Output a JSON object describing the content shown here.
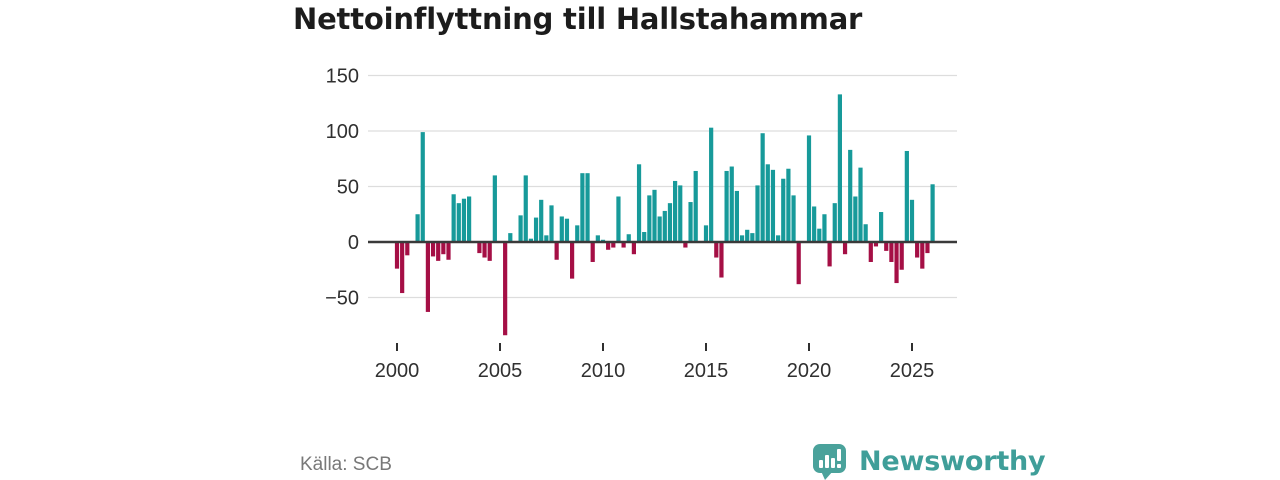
{
  "title": "Nettoinflyttning till Hallstahammar",
  "footer": {
    "source": "Källa: SCB",
    "brand": "Newsworthy"
  },
  "colors": {
    "positive": "#179a9a",
    "negative": "#a50f45",
    "grid": "#dddddd",
    "zero_line": "#3a3a3a",
    "axis_text": "#303030",
    "title_text": "#1c1c1c",
    "source_text": "#787878",
    "brand_teal": "#4aa29b"
  },
  "chart_data": {
    "type": "bar",
    "title": "Nettoinflyttning till Hallstahammar",
    "x_unit": "quarter",
    "start_period": "2000-Q1",
    "end_period": "2026-Q1",
    "grid": true,
    "ylim": [
      -90,
      160
    ],
    "y_ticks": [
      150,
      100,
      50,
      0,
      -50
    ],
    "y_tick_labels": [
      "150",
      "100",
      "50",
      "0",
      "−50"
    ],
    "x_ticks": [
      2000,
      2005,
      2010,
      2015,
      2020,
      2025
    ],
    "x_tick_labels": [
      "2000",
      "2005",
      "2010",
      "2015",
      "2020",
      "2025"
    ],
    "values": [
      -24,
      -46,
      -12,
      0,
      25,
      99,
      -63,
      -13,
      -17,
      -11,
      -16,
      43,
      35,
      39,
      41,
      0,
      -10,
      -14,
      -17,
      60,
      0,
      -84,
      8,
      0,
      24,
      60,
      3,
      22,
      38,
      6,
      33,
      -16,
      23,
      21,
      -33,
      15,
      62,
      62,
      -18,
      6,
      2,
      -7,
      -5,
      41,
      -5,
      7,
      -11,
      70,
      9,
      42,
      47,
      23,
      28,
      35,
      55,
      51,
      -5,
      36,
      64,
      0,
      15,
      103,
      -14,
      -32,
      64,
      68,
      46,
      6,
      11,
      8,
      51,
      98,
      70,
      65,
      6,
      57,
      66,
      42,
      -38,
      0,
      96,
      32,
      12,
      25,
      -22,
      35,
      133,
      -11,
      83,
      41,
      67,
      16,
      -18,
      -4,
      27,
      -8,
      -18,
      -37,
      -25,
      82,
      38,
      -14,
      -24,
      -10,
      52
    ]
  }
}
